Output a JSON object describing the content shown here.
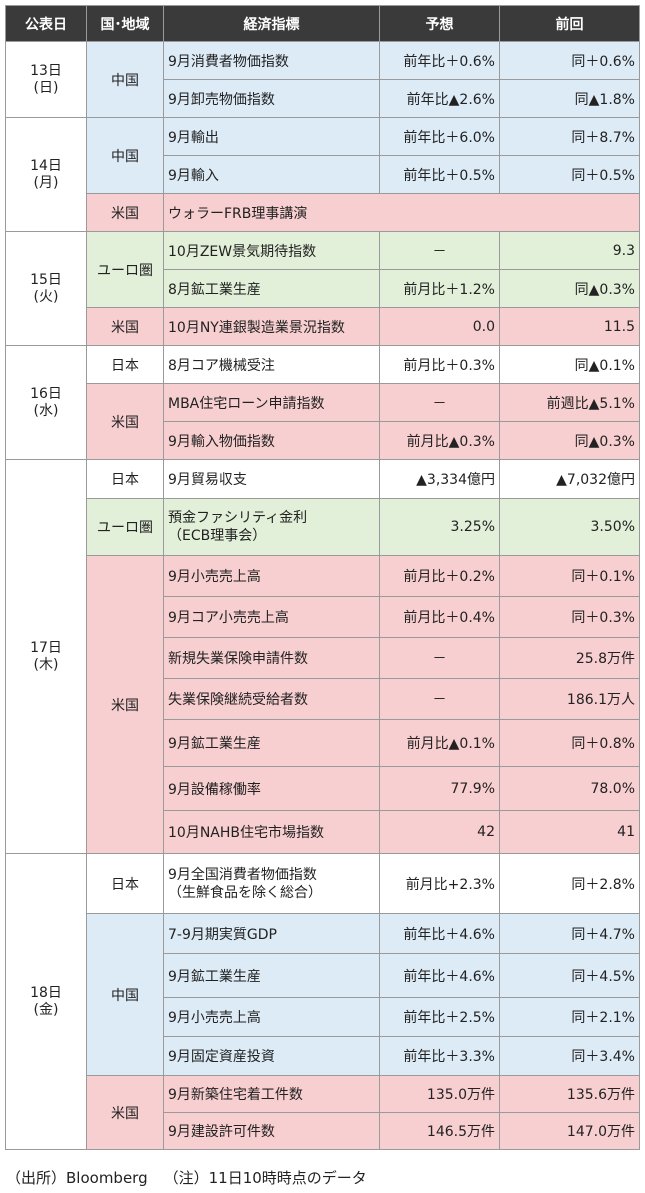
{
  "headers": {
    "date": "公表日",
    "region": "国･地域",
    "indicator": "経済指標",
    "forecast": "予想",
    "previous": "前回"
  },
  "days": [
    {
      "date": [
        "13日",
        "(日)"
      ],
      "groups": [
        {
          "region": "中国",
          "color": "china",
          "rows": [
            {
              "indicator": "9月消費者物価指数",
              "forecast": "前年比＋0.6%",
              "previous": "同＋0.6%",
              "h": 38
            },
            {
              "indicator": "9月卸売物価指数",
              "forecast": "前年比▲2.6%",
              "previous": "同▲1.8%",
              "h": 38
            }
          ]
        }
      ]
    },
    {
      "date": [
        "14日",
        "(月)"
      ],
      "groups": [
        {
          "region": "中国",
          "color": "china",
          "rows": [
            {
              "indicator": "9月輸出",
              "forecast": "前年比＋6.0%",
              "previous": "同＋8.7%",
              "h": 38
            },
            {
              "indicator": "9月輸入",
              "forecast": "前年比＋0.5%",
              "previous": "同＋0.5%",
              "h": 38
            }
          ]
        },
        {
          "region": "米国",
          "color": "us",
          "rows": [
            {
              "indicator": "ウォラーFRB理事講演",
              "forecast": "",
              "previous": "",
              "span": true,
              "h": 38
            }
          ]
        }
      ]
    },
    {
      "date": [
        "15日",
        "(火)"
      ],
      "groups": [
        {
          "region": "ユーロ圏",
          "color": "euro",
          "rows": [
            {
              "indicator": "10月ZEW景気期待指数",
              "forecast": "－",
              "previous": "9.3",
              "h": 38
            },
            {
              "indicator": "8月鉱工業生産",
              "forecast": "前月比＋1.2%",
              "previous": "同▲0.3%",
              "h": 38
            }
          ]
        },
        {
          "region": "米国",
          "color": "us",
          "rows": [
            {
              "indicator": "10月NY連銀製造業景況指数",
              "forecast": "0.0",
              "previous": "11.5",
              "h": 38
            }
          ]
        }
      ]
    },
    {
      "date": [
        "16日",
        "(水)"
      ],
      "groups": [
        {
          "region": "日本",
          "color": "japan",
          "rows": [
            {
              "indicator": "8月コア機械受注",
              "forecast": "前月比＋0.3%",
              "previous": "同▲0.1%",
              "h": 38
            }
          ]
        },
        {
          "region": "米国",
          "color": "us",
          "rows": [
            {
              "indicator": "MBA住宅ローン申請指数",
              "forecast": "－",
              "previous": "前週比▲5.1%",
              "h": 38
            },
            {
              "indicator": "9月輸入物価指数",
              "forecast": "前月比▲0.3%",
              "previous": "同▲0.3%",
              "h": 38
            }
          ]
        }
      ]
    },
    {
      "date": [
        "17日",
        "(木)"
      ],
      "groups": [
        {
          "region": "日本",
          "color": "japan",
          "rows": [
            {
              "indicator": "9月貿易収支",
              "forecast": "▲3,334億円",
              "previous": "▲7,032億円",
              "h": 39
            }
          ]
        },
        {
          "region": "ユーロ圏",
          "color": "euro",
          "rows": [
            {
              "indicator": "預金ファシリティ金利\n（ECB理事会）",
              "forecast": "3.25%",
              "previous": "3.50%",
              "h": 57
            }
          ]
        },
        {
          "region": "米国",
          "color": "us",
          "rows": [
            {
              "indicator": "9月小売売上高",
              "forecast": "前月比＋0.2%",
              "previous": "同＋0.1%",
              "h": 41
            },
            {
              "indicator": "9月コア小売売上高",
              "forecast": "前月比＋0.4%",
              "previous": "同＋0.3%",
              "h": 41
            },
            {
              "indicator": "新規失業保険申請件数",
              "forecast": "－",
              "previous": "25.8万件",
              "h": 41
            },
            {
              "indicator": "失業保険継続受給者数",
              "forecast": "－",
              "previous": "186.1万人",
              "h": 41
            },
            {
              "indicator": "9月鉱工業生産",
              "forecast": "前月比▲0.1%",
              "previous": "同＋0.8%",
              "h": 47
            },
            {
              "indicator": "9月設備稼働率",
              "forecast": "77.9%",
              "previous": "78.0%",
              "h": 44
            },
            {
              "indicator": "10月NAHB住宅市場指数",
              "forecast": "42",
              "previous": "41",
              "h": 43
            }
          ]
        }
      ]
    },
    {
      "date": [
        "18日",
        "(金)"
      ],
      "groups": [
        {
          "region": "日本",
          "color": "japan",
          "rows": [
            {
              "indicator": "9月全国消費者物価指数\n（生鮮食品を除く総合）",
              "forecast": "前月比+2.3%",
              "previous": "同＋2.8%",
              "h": 60
            }
          ]
        },
        {
          "region": "中国",
          "color": "china",
          "rows": [
            {
              "indicator": "7-9月期実質GDP",
              "forecast": "前年比＋4.6%",
              "previous": "同＋4.7%",
              "h": 40
            },
            {
              "indicator": "9月鉱工業生産",
              "forecast": "前年比＋4.6%",
              "previous": "同＋4.5%",
              "h": 44
            },
            {
              "indicator": "9月小売売上高",
              "forecast": "前年比＋2.5%",
              "previous": "同＋2.1%",
              "h": 39
            },
            {
              "indicator": "9月固定資産投資",
              "forecast": "前年比＋3.3%",
              "previous": "同＋3.4%",
              "h": 39
            }
          ]
        },
        {
          "region": "米国",
          "color": "us",
          "rows": [
            {
              "indicator": "9月新築住宅着工件数",
              "forecast": "135.0万件",
              "previous": "135.6万件",
              "h": 37
            },
            {
              "indicator": "9月建設許可件数",
              "forecast": "146.5万件",
              "previous": "147.0万件",
              "h": 37
            }
          ]
        }
      ]
    }
  ],
  "footer": {
    "source": "（出所）Bloomberg",
    "note": "（注）11日10時時点のデータ"
  }
}
